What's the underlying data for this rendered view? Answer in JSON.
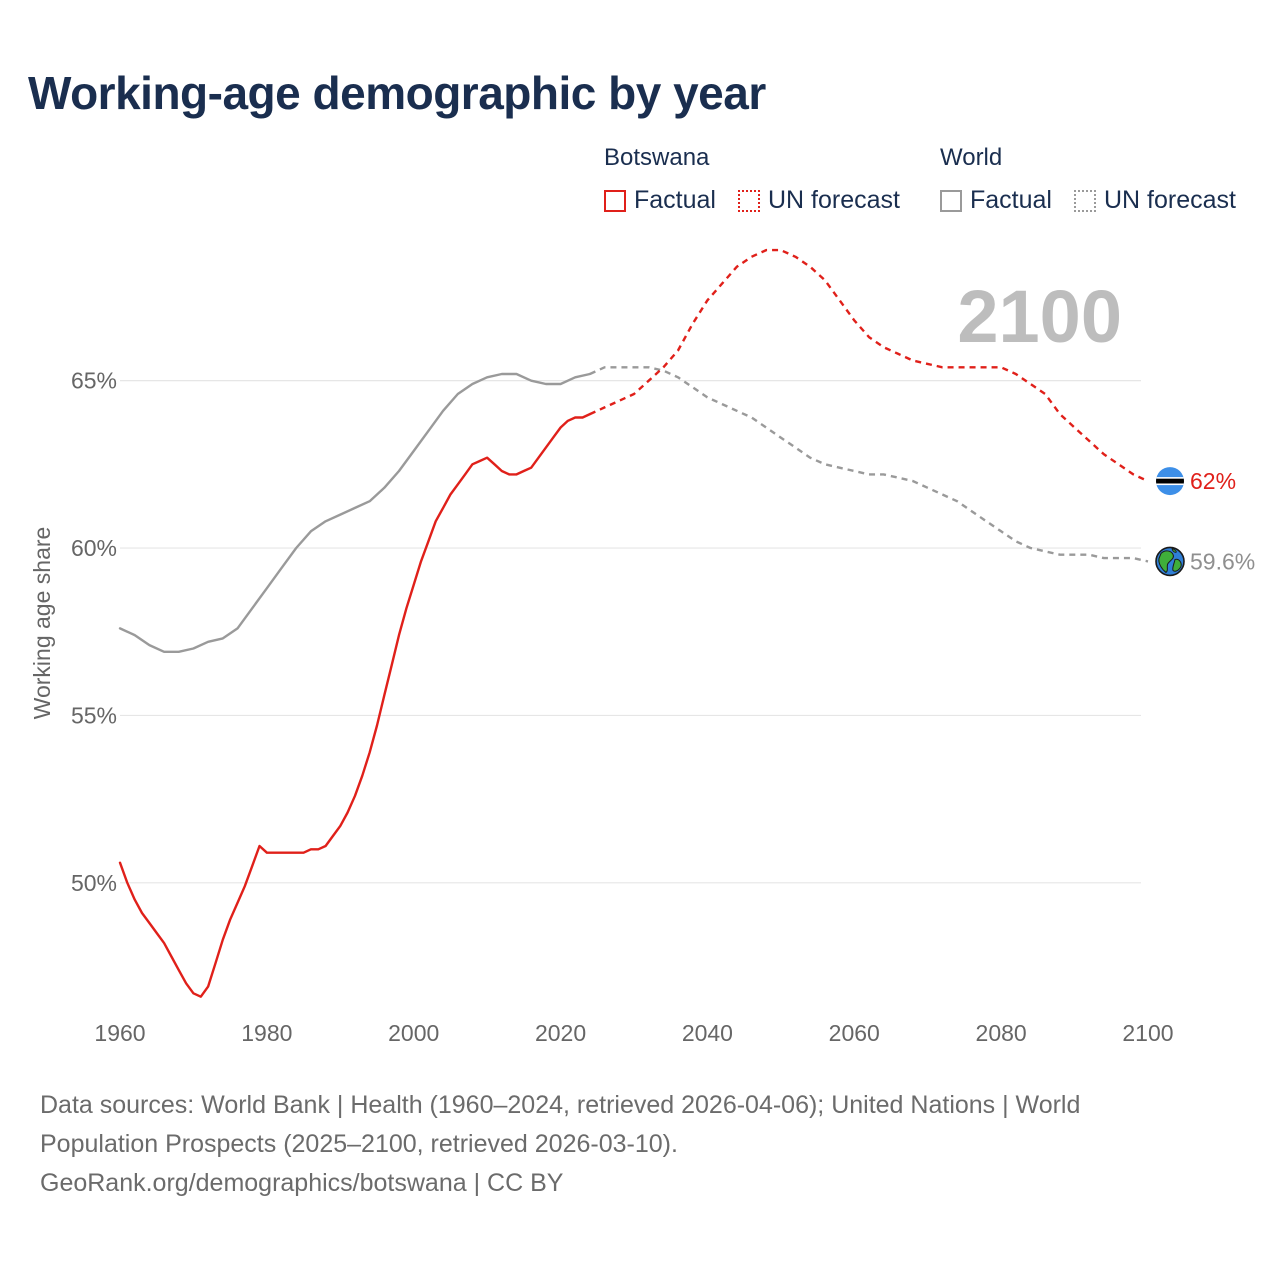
{
  "chart_data": {
    "type": "line",
    "title": "Working-age demographic by year",
    "ylabel": "Working age share",
    "xlabel": "",
    "xlim": [
      1960,
      2103
    ],
    "ylim": [
      46.5,
      69.5
    ],
    "x_ticks": [
      1960,
      1980,
      2000,
      2020,
      2040,
      2060,
      2080,
      2100
    ],
    "x_tick_labels": [
      "1960",
      "1980",
      "2000",
      "2020",
      "2040",
      "2060",
      "2080",
      "2100"
    ],
    "y_ticks": [
      50,
      55,
      60,
      65
    ],
    "y_tick_labels": [
      "50%",
      "55%",
      "60%",
      "65%"
    ],
    "current_year_label": "2100",
    "legend": {
      "groups": [
        {
          "title": "Botswana",
          "items": [
            "Factual",
            "UN forecast"
          ]
        },
        {
          "title": "World",
          "items": [
            "Factual",
            "UN forecast"
          ]
        }
      ]
    },
    "series": [
      {
        "name": "Botswana",
        "kind": "Factual",
        "color": "#e0201a",
        "dashed": false,
        "x": [
          1960,
          1961,
          1962,
          1963,
          1964,
          1965,
          1966,
          1967,
          1968,
          1969,
          1970,
          1971,
          1972,
          1973,
          1974,
          1975,
          1976,
          1977,
          1978,
          1979,
          1980,
          1981,
          1982,
          1983,
          1984,
          1985,
          1986,
          1987,
          1988,
          1989,
          1990,
          1991,
          1992,
          1993,
          1994,
          1995,
          1996,
          1997,
          1998,
          1999,
          2000,
          2001,
          2002,
          2003,
          2004,
          2005,
          2006,
          2007,
          2008,
          2009,
          2010,
          2011,
          2012,
          2013,
          2014,
          2015,
          2016,
          2017,
          2018,
          2019,
          2020,
          2021,
          2022,
          2023,
          2024
        ],
        "y": [
          50.6,
          50.0,
          49.5,
          49.1,
          48.8,
          48.5,
          48.2,
          47.8,
          47.4,
          47.0,
          46.7,
          46.6,
          46.9,
          47.6,
          48.3,
          48.9,
          49.4,
          49.9,
          50.5,
          51.1,
          50.9,
          50.9,
          50.9,
          50.9,
          50.9,
          50.9,
          51.0,
          51.0,
          51.1,
          51.4,
          51.7,
          52.1,
          52.6,
          53.2,
          53.9,
          54.7,
          55.6,
          56.5,
          57.4,
          58.2,
          58.9,
          59.6,
          60.2,
          60.8,
          61.2,
          61.6,
          61.9,
          62.2,
          62.5,
          62.6,
          62.7,
          62.5,
          62.3,
          62.2,
          62.2,
          62.3,
          62.4,
          62.7,
          63.0,
          63.3,
          63.6,
          63.8,
          63.9,
          63.9,
          64.0
        ]
      },
      {
        "name": "Botswana",
        "kind": "UN forecast",
        "color": "#e0201a",
        "dashed": true,
        "x": [
          2024,
          2026,
          2028,
          2030,
          2032,
          2034,
          2036,
          2038,
          2040,
          2042,
          2044,
          2046,
          2048,
          2050,
          2052,
          2054,
          2056,
          2058,
          2060,
          2062,
          2064,
          2066,
          2068,
          2070,
          2072,
          2074,
          2076,
          2078,
          2080,
          2082,
          2084,
          2086,
          2088,
          2090,
          2092,
          2094,
          2096,
          2098,
          2100
        ],
        "y": [
          64.0,
          64.2,
          64.4,
          64.6,
          65.0,
          65.4,
          65.9,
          66.7,
          67.4,
          67.9,
          68.4,
          68.7,
          68.9,
          68.9,
          68.7,
          68.4,
          68.0,
          67.4,
          66.8,
          66.3,
          66.0,
          65.8,
          65.6,
          65.5,
          65.4,
          65.4,
          65.4,
          65.4,
          65.4,
          65.2,
          64.9,
          64.6,
          64.0,
          63.6,
          63.2,
          62.8,
          62.5,
          62.2,
          62.0
        ]
      },
      {
        "name": "World",
        "kind": "Factual",
        "color": "#9a9a9a",
        "dashed": false,
        "x": [
          1960,
          1962,
          1964,
          1966,
          1968,
          1970,
          1972,
          1974,
          1976,
          1978,
          1980,
          1982,
          1984,
          1986,
          1988,
          1990,
          1992,
          1994,
          1996,
          1998,
          2000,
          2002,
          2004,
          2006,
          2008,
          2010,
          2012,
          2014,
          2016,
          2018,
          2020,
          2022,
          2024
        ],
        "y": [
          57.6,
          57.4,
          57.1,
          56.9,
          56.9,
          57.0,
          57.2,
          57.3,
          57.6,
          58.2,
          58.8,
          59.4,
          60.0,
          60.5,
          60.8,
          61.0,
          61.2,
          61.4,
          61.8,
          62.3,
          62.9,
          63.5,
          64.1,
          64.6,
          64.9,
          65.1,
          65.2,
          65.2,
          65.0,
          64.9,
          64.9,
          65.1,
          65.2
        ]
      },
      {
        "name": "World",
        "kind": "UN forecast",
        "color": "#9a9a9a",
        "dashed": true,
        "x": [
          2024,
          2026,
          2028,
          2030,
          2032,
          2034,
          2036,
          2038,
          2040,
          2042,
          2044,
          2046,
          2048,
          2050,
          2052,
          2054,
          2056,
          2058,
          2060,
          2062,
          2064,
          2066,
          2068,
          2070,
          2072,
          2074,
          2076,
          2078,
          2080,
          2082,
          2084,
          2086,
          2088,
          2090,
          2092,
          2094,
          2096,
          2098,
          2100
        ],
        "y": [
          65.2,
          65.4,
          65.4,
          65.4,
          65.4,
          65.3,
          65.1,
          64.8,
          64.5,
          64.3,
          64.1,
          63.9,
          63.6,
          63.3,
          63.0,
          62.7,
          62.5,
          62.4,
          62.3,
          62.2,
          62.2,
          62.1,
          62.0,
          61.8,
          61.6,
          61.4,
          61.1,
          60.8,
          60.5,
          60.2,
          60.0,
          59.9,
          59.8,
          59.8,
          59.8,
          59.7,
          59.7,
          59.7,
          59.6
        ]
      }
    ],
    "end_labels": [
      {
        "series": "Botswana",
        "value": 62.0,
        "text": "62%",
        "color": "#e0201a",
        "marker": "botswana-flag"
      },
      {
        "series": "World",
        "value": 59.6,
        "text": "59.6%",
        "color": "#8f8f8f",
        "marker": "globe"
      }
    ]
  },
  "legend_colors": {
    "botswana": "#e0201a",
    "world": "#9a9a9a"
  },
  "footer": {
    "line1": "Data sources: World Bank | Health (1960–2024, retrieved 2026-04-06); United Nations | World",
    "line2": "Population Prospects (2025–2100, retrieved 2026-03-10).",
    "line3": "GeoRank.org/demographics/botswana | CC BY"
  }
}
